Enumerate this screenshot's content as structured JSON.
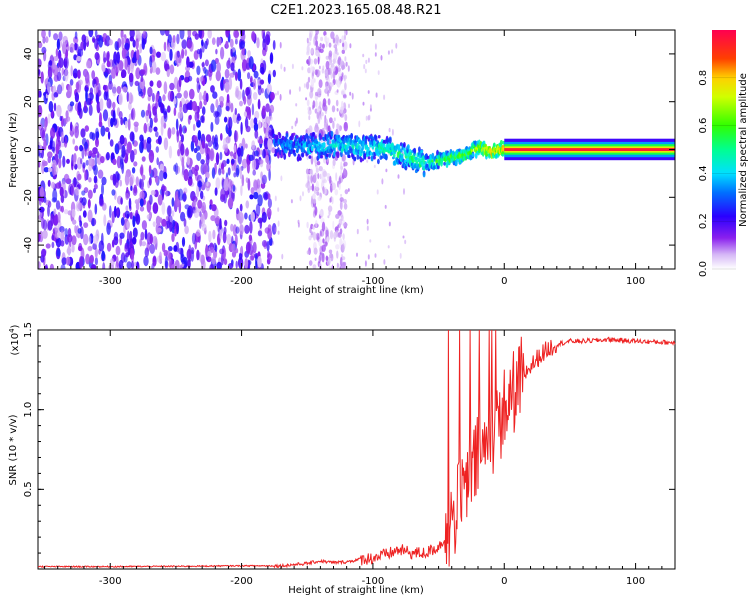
{
  "title": "C2E1.2023.165.08.48.R21",
  "chart_data": [
    {
      "type": "heatmap",
      "xlabel": "Height of straight line (km)",
      "ylabel": "Frequency (Hz)",
      "xlim": [
        -355,
        130
      ],
      "ylim": [
        -50,
        50
      ],
      "xticks": [
        -300,
        -200,
        -100,
        0,
        100
      ],
      "yticks": [
        -40,
        -20,
        0,
        20,
        40
      ],
      "colorbar": {
        "label": "Normalized spectral amplitude",
        "range": [
          0.0,
          1.0
        ],
        "ticks": [
          "0.0",
          "0.2",
          "0.4",
          "0.6",
          "0.8"
        ]
      },
      "noise_region": {
        "x": [
          -355,
          -175
        ],
        "y": [
          -50,
          50
        ],
        "amplitude": [
          0.05,
          0.25
        ]
      },
      "sparse_noise_region": {
        "x": [
          -150,
          -120
        ],
        "y": [
          -50,
          50
        ],
        "amplitude": [
          0.02,
          0.12
        ]
      },
      "signal_track": [
        {
          "x": -175,
          "y": 2
        },
        {
          "x": -150,
          "y": 1
        },
        {
          "x": -130,
          "y": 2
        },
        {
          "x": -110,
          "y": 1
        },
        {
          "x": -90,
          "y": 0
        },
        {
          "x": -75,
          "y": -3
        },
        {
          "x": -60,
          "y": -6
        },
        {
          "x": -45,
          "y": -4
        },
        {
          "x": -30,
          "y": -2
        },
        {
          "x": -18,
          "y": 1
        },
        {
          "x": -10,
          "y": -1
        },
        {
          "x": 0,
          "y": 0
        },
        {
          "x": 130,
          "y": 0
        }
      ],
      "signal_amplitude": [
        {
          "x": -175,
          "a": 0.35
        },
        {
          "x": -120,
          "a": 0.45
        },
        {
          "x": -60,
          "a": 0.55
        },
        {
          "x": -30,
          "a": 0.65
        },
        {
          "x": 0,
          "a": 0.85
        },
        {
          "x": 130,
          "a": 0.95
        }
      ]
    },
    {
      "type": "line",
      "xlabel": "Height of straight line (km)",
      "ylabel": "SNR (10 * v/v)",
      "y_scale_label": "(x10",
      "y_scale_exp": "4",
      "y_scale_close": ")",
      "xlim": [
        -355,
        130
      ],
      "ylim": [
        0,
        1.5
      ],
      "xticks": [
        -300,
        -200,
        -100,
        0,
        100
      ],
      "yticks": [
        "0.5",
        "1.0",
        "1.5"
      ],
      "color": "#ee2222",
      "series": [
        {
          "x": [
            -355,
            -300,
            -250,
            -200,
            -170,
            -150,
            -140,
            -130,
            -120,
            -110,
            -100,
            -90,
            -80,
            -70,
            -60,
            -50,
            -45,
            -40,
            -35,
            -30,
            -25,
            -20,
            -15,
            -10,
            -5,
            0,
            5,
            10,
            15,
            20,
            25,
            30,
            35,
            40,
            50,
            60,
            80,
            100,
            130
          ],
          "y": [
            0.015,
            0.015,
            0.017,
            0.02,
            0.02,
            0.035,
            0.05,
            0.04,
            0.045,
            0.06,
            0.07,
            0.09,
            0.12,
            0.1,
            0.1,
            0.14,
            0.2,
            0.3,
            0.4,
            0.5,
            0.6,
            0.7,
            0.75,
            0.85,
            0.9,
            1.0,
            1.08,
            1.15,
            1.22,
            1.27,
            1.32,
            1.36,
            1.39,
            1.41,
            1.43,
            1.43,
            1.44,
            1.43,
            1.42
          ]
        }
      ]
    }
  ]
}
